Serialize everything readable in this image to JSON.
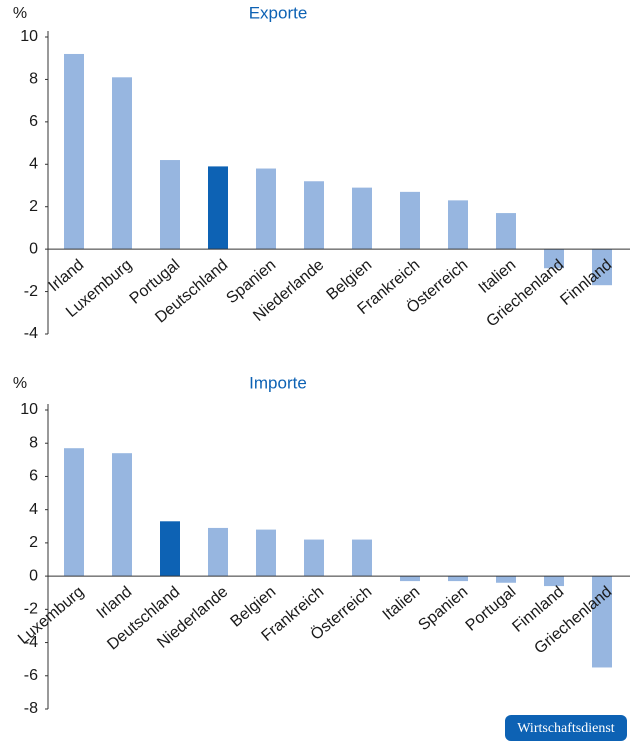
{
  "chart_data": [
    {
      "type": "bar",
      "title": "Exporte",
      "y_label": "%",
      "categories": [
        "Irland",
        "Luxemburg",
        "Portugal",
        "Deutschland",
        "Spanien",
        "Niederlande",
        "Belgien",
        "Frankreich",
        "Österreich",
        "Italien",
        "Griechenland",
        "Finnland"
      ],
      "values": [
        9.2,
        8.1,
        4.2,
        3.9,
        3.8,
        3.2,
        2.9,
        2.7,
        2.3,
        1.7,
        -0.9,
        -1.7
      ],
      "colors": [
        "#97b6e0",
        "#97b6e0",
        "#97b6e0",
        "#0d62b4",
        "#97b6e0",
        "#97b6e0",
        "#97b6e0",
        "#97b6e0",
        "#97b6e0",
        "#97b6e0",
        "#97b6e0",
        "#97b6e0"
      ],
      "ylim": [
        -4,
        10
      ],
      "yticks": [
        -4,
        -2,
        0,
        2,
        4,
        6,
        8,
        10
      ]
    },
    {
      "type": "bar",
      "title": "Importe",
      "y_label": "%",
      "categories": [
        "Luxemburg",
        "Irland",
        "Deutschland",
        "Niederlande",
        "Belgien",
        "Frankreich",
        "Österreich",
        "Italien",
        "Spanien",
        "Portugal",
        "Finnland",
        "Griechenland"
      ],
      "values": [
        7.7,
        7.4,
        3.3,
        2.9,
        2.8,
        2.2,
        2.2,
        -0.3,
        -0.3,
        -0.4,
        -0.6,
        -5.5
      ],
      "colors": [
        "#97b6e0",
        "#97b6e0",
        "#0d62b4",
        "#97b6e0",
        "#97b6e0",
        "#97b6e0",
        "#97b6e0",
        "#97b6e0",
        "#97b6e0",
        "#97b6e0",
        "#97b6e0",
        "#97b6e0"
      ],
      "ylim": [
        -8,
        10
      ],
      "yticks": [
        -8,
        -6,
        -4,
        -2,
        0,
        2,
        4,
        6,
        8,
        10
      ]
    }
  ],
  "source": "Wirtschaftsdienst"
}
